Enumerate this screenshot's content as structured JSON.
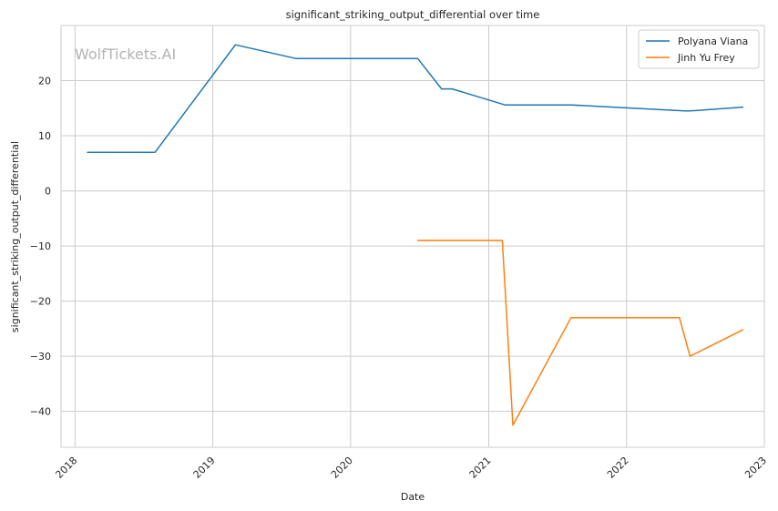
{
  "chart_data": {
    "type": "line",
    "title": "significant_striking_output_differential over time",
    "xlabel": "Date",
    "ylabel": "significant_striking_output_differential",
    "watermark": "WolfTickets.AI",
    "grid": true,
    "legend_position": "top-right",
    "x_scale": "time",
    "xlim": [
      "2017-11-25",
      "2023-01-01"
    ],
    "ylim": [
      -46.5,
      30
    ],
    "x_ticks": [
      "2018-01-01",
      "2019-01-01",
      "2020-01-01",
      "2021-01-01",
      "2022-01-01",
      "2023-01-01"
    ],
    "x_tick_labels": [
      "2018",
      "2019",
      "2020",
      "2021",
      "2022",
      "2023"
    ],
    "y_ticks": [
      -40,
      -30,
      -20,
      -10,
      0,
      10,
      20
    ],
    "y_tick_labels": [
      "−40",
      "−30",
      "−20",
      "−10",
      "0",
      "10",
      "20"
    ],
    "series": [
      {
        "name": "Polyana Viana",
        "color": "#1f77b4",
        "x": [
          "2018-02-03",
          "2018-08-01",
          "2019-03-02",
          "2019-08-10",
          "2020-06-27",
          "2020-08-29",
          "2020-09-26",
          "2021-02-13",
          "2021-08-07",
          "2022-06-04",
          "2022-06-18",
          "2022-11-05"
        ],
        "y": [
          7,
          7,
          26.5,
          24,
          24,
          18.5,
          18.5,
          15.6,
          15.6,
          14.5,
          14.5,
          15.2
        ]
      },
      {
        "name": "Jinh Yu Frey",
        "color": "#ff7f0e",
        "x": [
          "2020-06-27",
          "2021-02-06",
          "2021-03-06",
          "2021-08-07",
          "2022-05-21",
          "2022-06-18",
          "2022-11-05"
        ],
        "y": [
          -9,
          -9,
          -42.5,
          -23,
          -23,
          -30,
          -25.2
        ]
      }
    ]
  }
}
